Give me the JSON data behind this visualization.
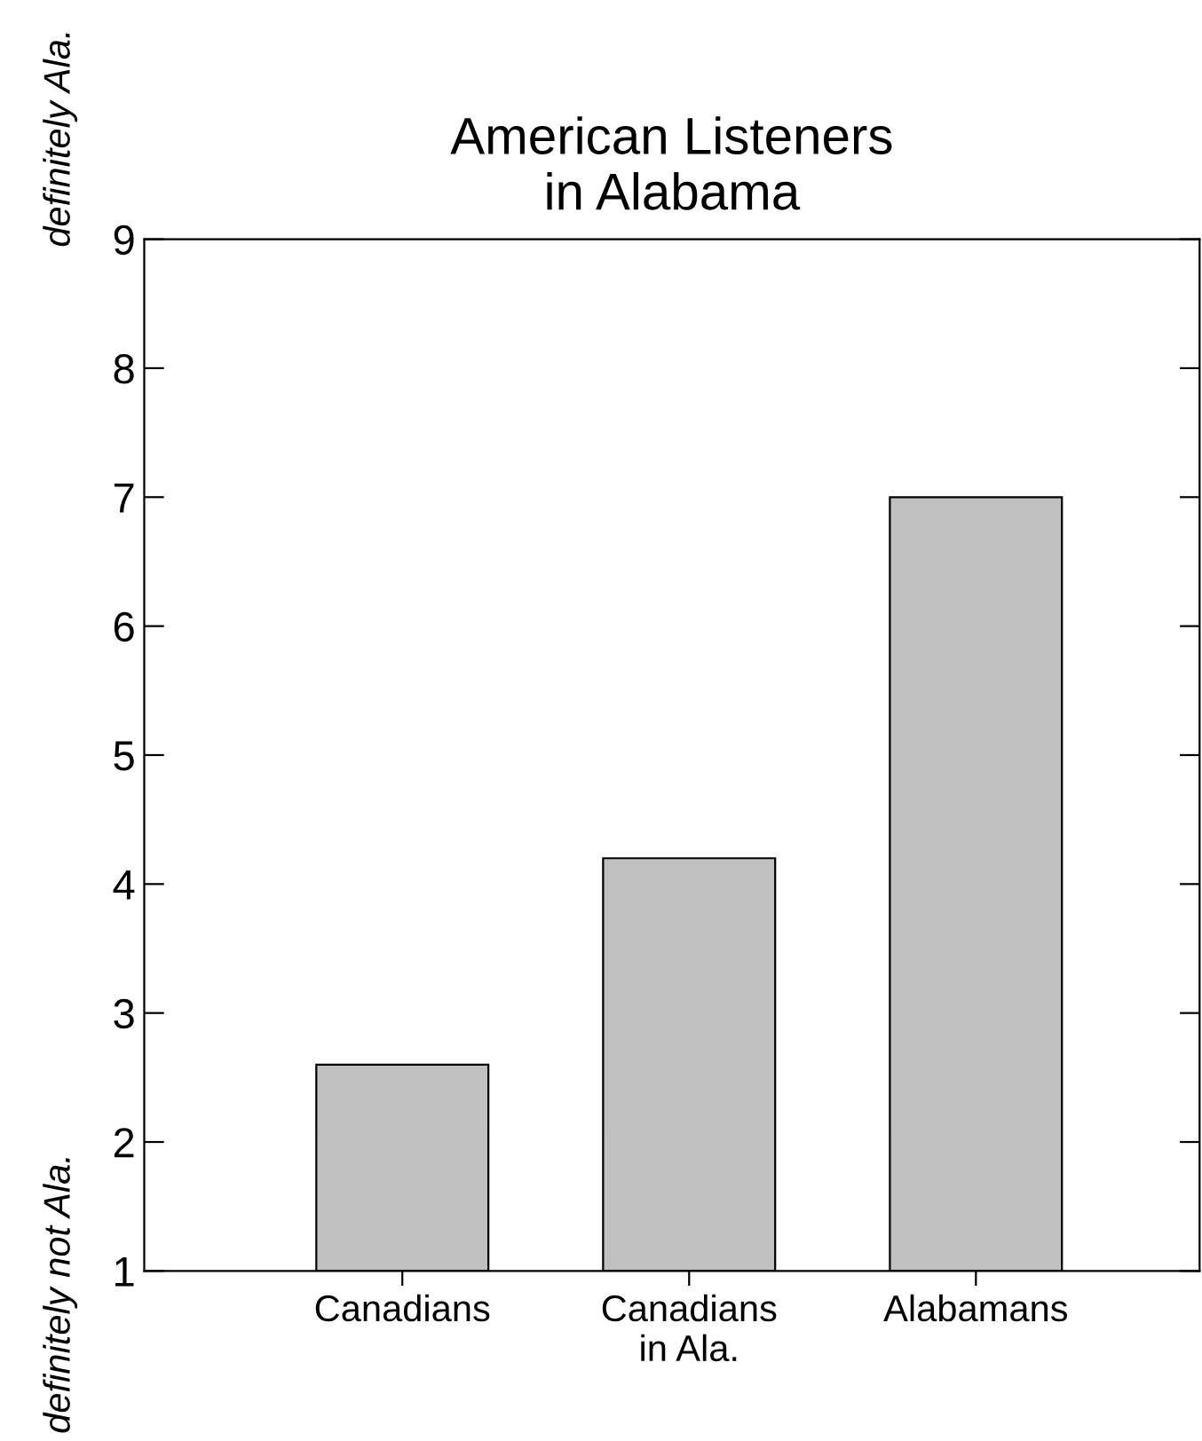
{
  "chart_data": {
    "type": "bar",
    "title": "American Listeners\nin Alabama",
    "categories": [
      "Canadians",
      "Canadians\nin Ala.",
      "Alabamans"
    ],
    "values": [
      2.6,
      4.2,
      7.0
    ],
    "color": "#c0c0c0",
    "ylim": [
      1,
      9
    ],
    "yticks": [
      1,
      2,
      3,
      4,
      5,
      6,
      7,
      8,
      9
    ],
    "grid": false,
    "annotations": [
      "definitely Ala.",
      "definitely not Ala."
    ]
  }
}
